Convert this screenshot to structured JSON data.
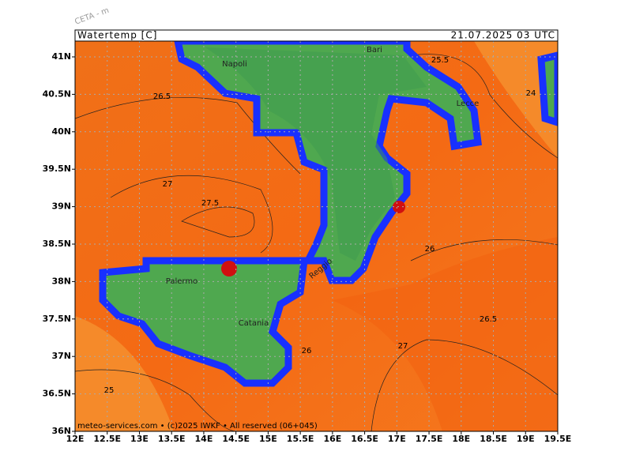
{
  "header": {
    "title": "Watertemp [C]",
    "valid_time": "21.07.2025 03 UTC",
    "watermark": "CETA - m"
  },
  "axes": {
    "lon_labels": [
      "12E",
      "12.5E",
      "13E",
      "13.5E",
      "14E",
      "14.5E",
      "15E",
      "15.5E",
      "16E",
      "16.5E",
      "17E",
      "17.5E",
      "18E",
      "18.5E",
      "19E",
      "19.5E"
    ],
    "lat_labels": [
      "41N",
      "40.5N",
      "40N",
      "39.5N",
      "39N",
      "38.5N",
      "38N",
      "37.5N",
      "37N",
      "36.5N",
      "36N"
    ]
  },
  "contour_labels": [
    "26.5",
    "27",
    "27.5",
    "26",
    "26.5",
    "27",
    "26",
    "25",
    "25.5",
    "24"
  ],
  "places": [
    "Napoli",
    "Bari",
    "Lecce",
    "Reggio",
    "Palermo",
    "Catania"
  ],
  "footer": "meteo-services.com • (c)2025 IWKF • All reserved (06+045)"
}
